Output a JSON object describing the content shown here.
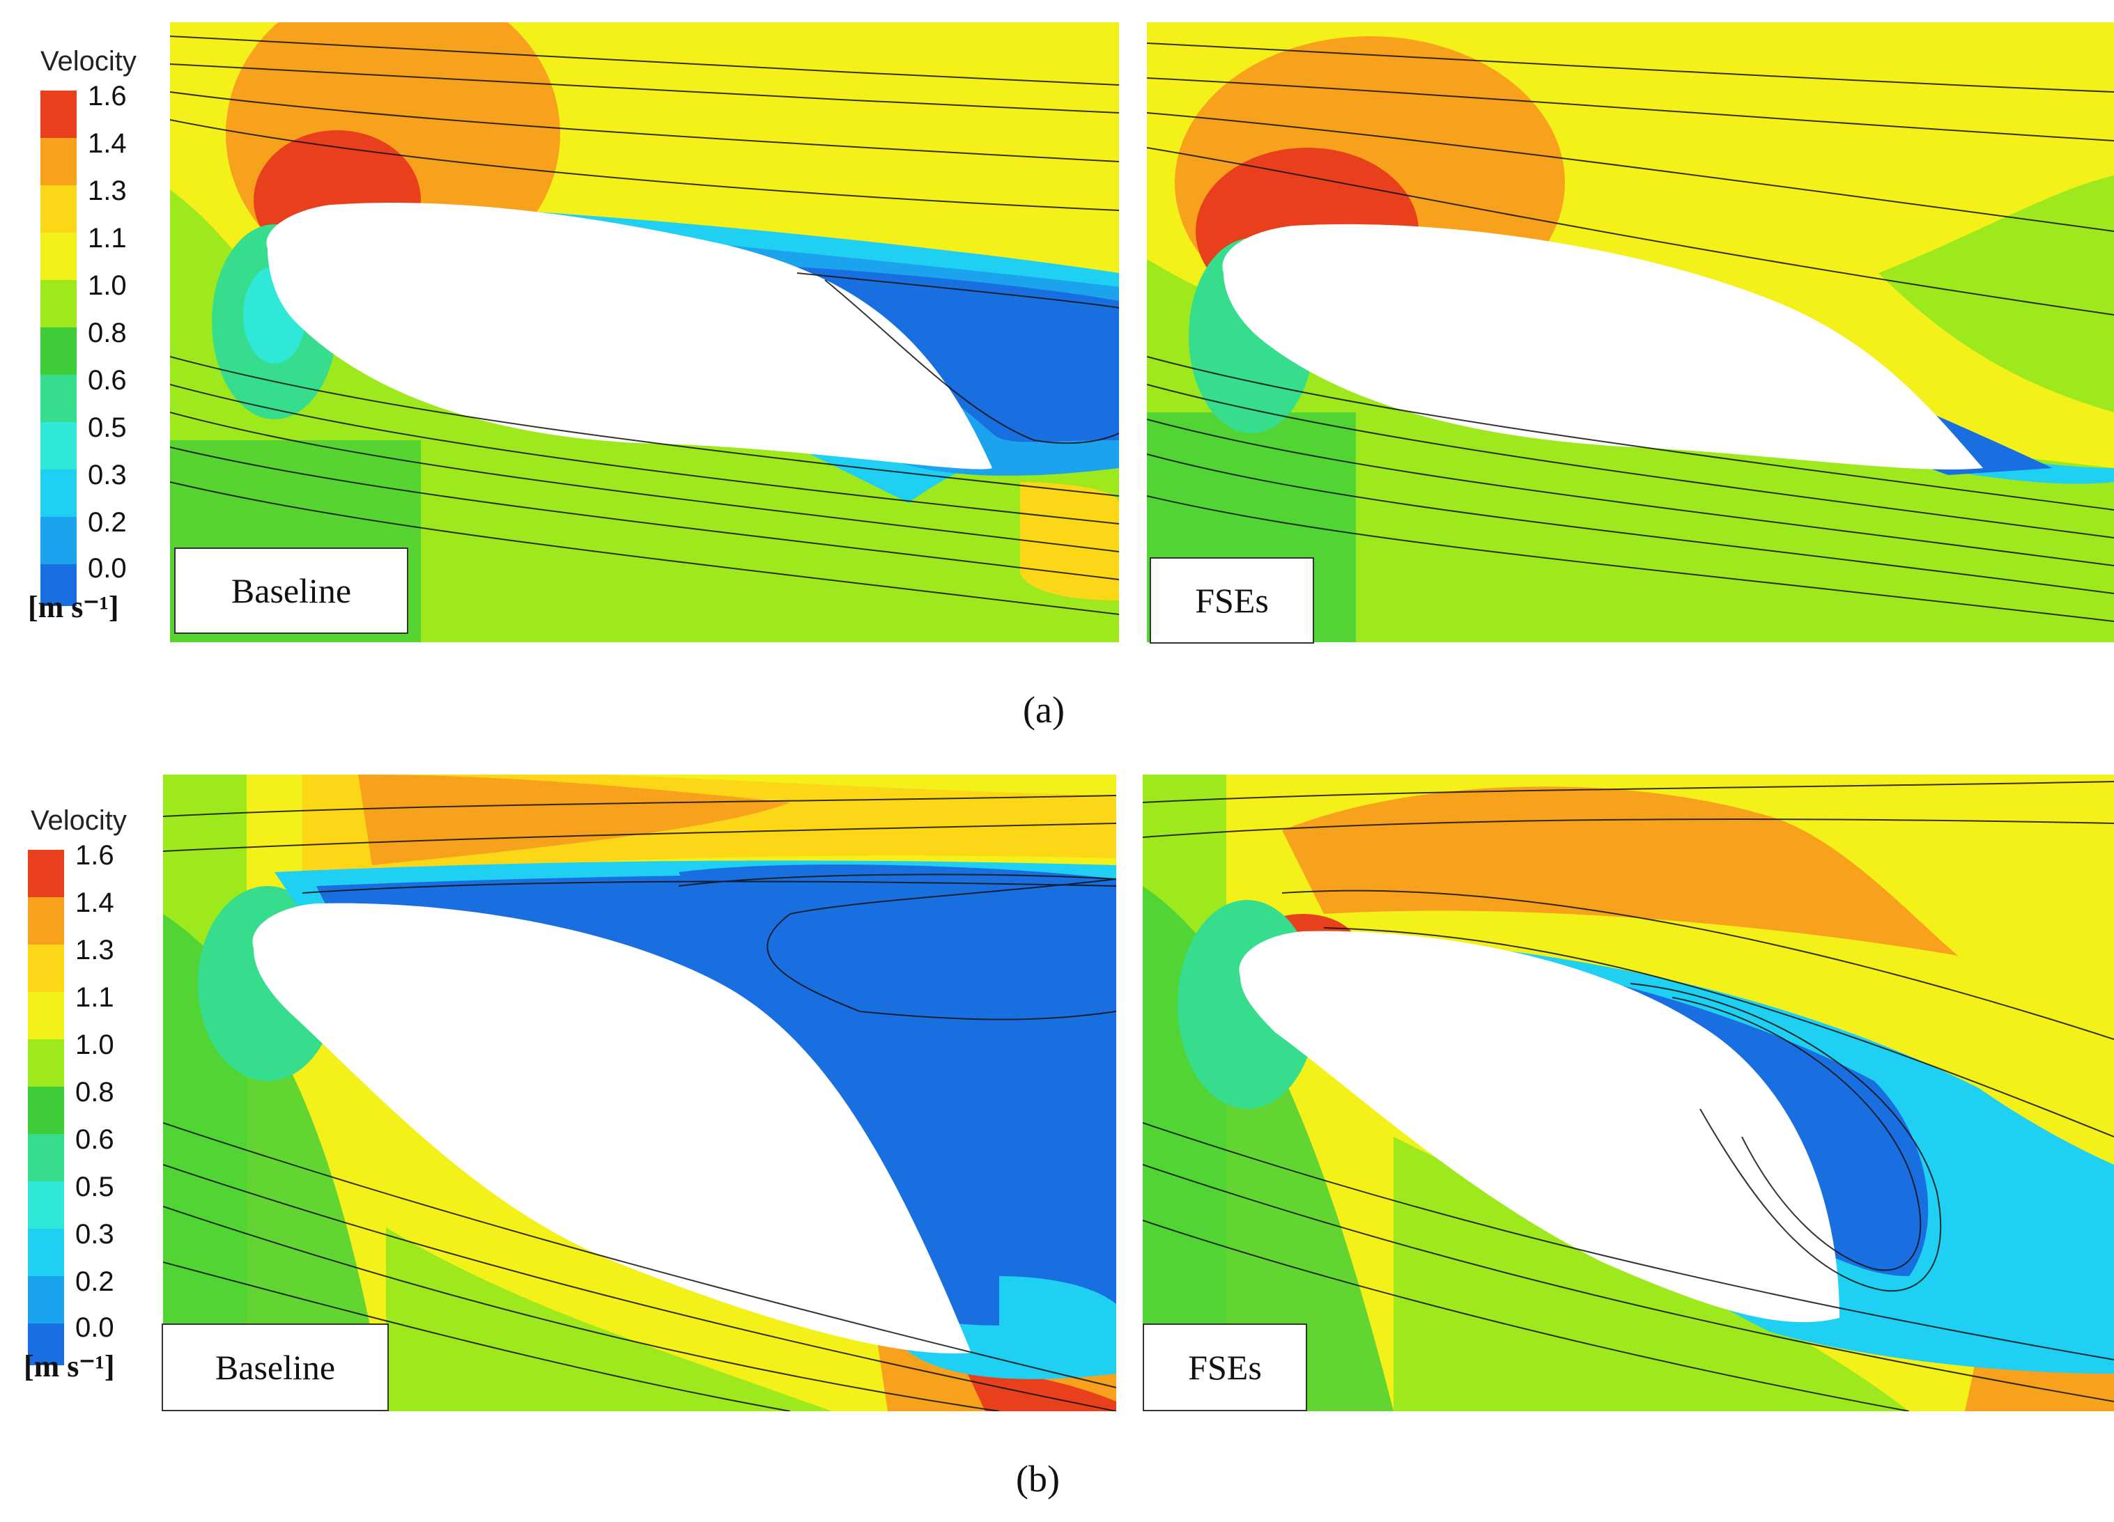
{
  "legend": {
    "title": "Velocity",
    "ticks": [
      "1.6",
      "1.4",
      "1.3",
      "1.1",
      "1.0",
      "0.8",
      "0.6",
      "0.5",
      "0.3",
      "0.2",
      "0.0"
    ],
    "unit": "[m s⁻¹]",
    "colors": [
      "#e8401c",
      "#f7a11c",
      "#fbd718",
      "#f4f11a",
      "#9ee81e",
      "#3fce3a",
      "#36dd8c",
      "#2fe8d7",
      "#20d0f2",
      "#1ca3ee",
      "#1a6fe0"
    ]
  },
  "rows": [
    {
      "caption": "(a)",
      "panels": [
        {
          "label": "Baseline"
        },
        {
          "label": "FSEs"
        }
      ]
    },
    {
      "caption": "(b)",
      "panels": [
        {
          "label": "Baseline"
        },
        {
          "label": "FSEs"
        }
      ]
    }
  ]
}
